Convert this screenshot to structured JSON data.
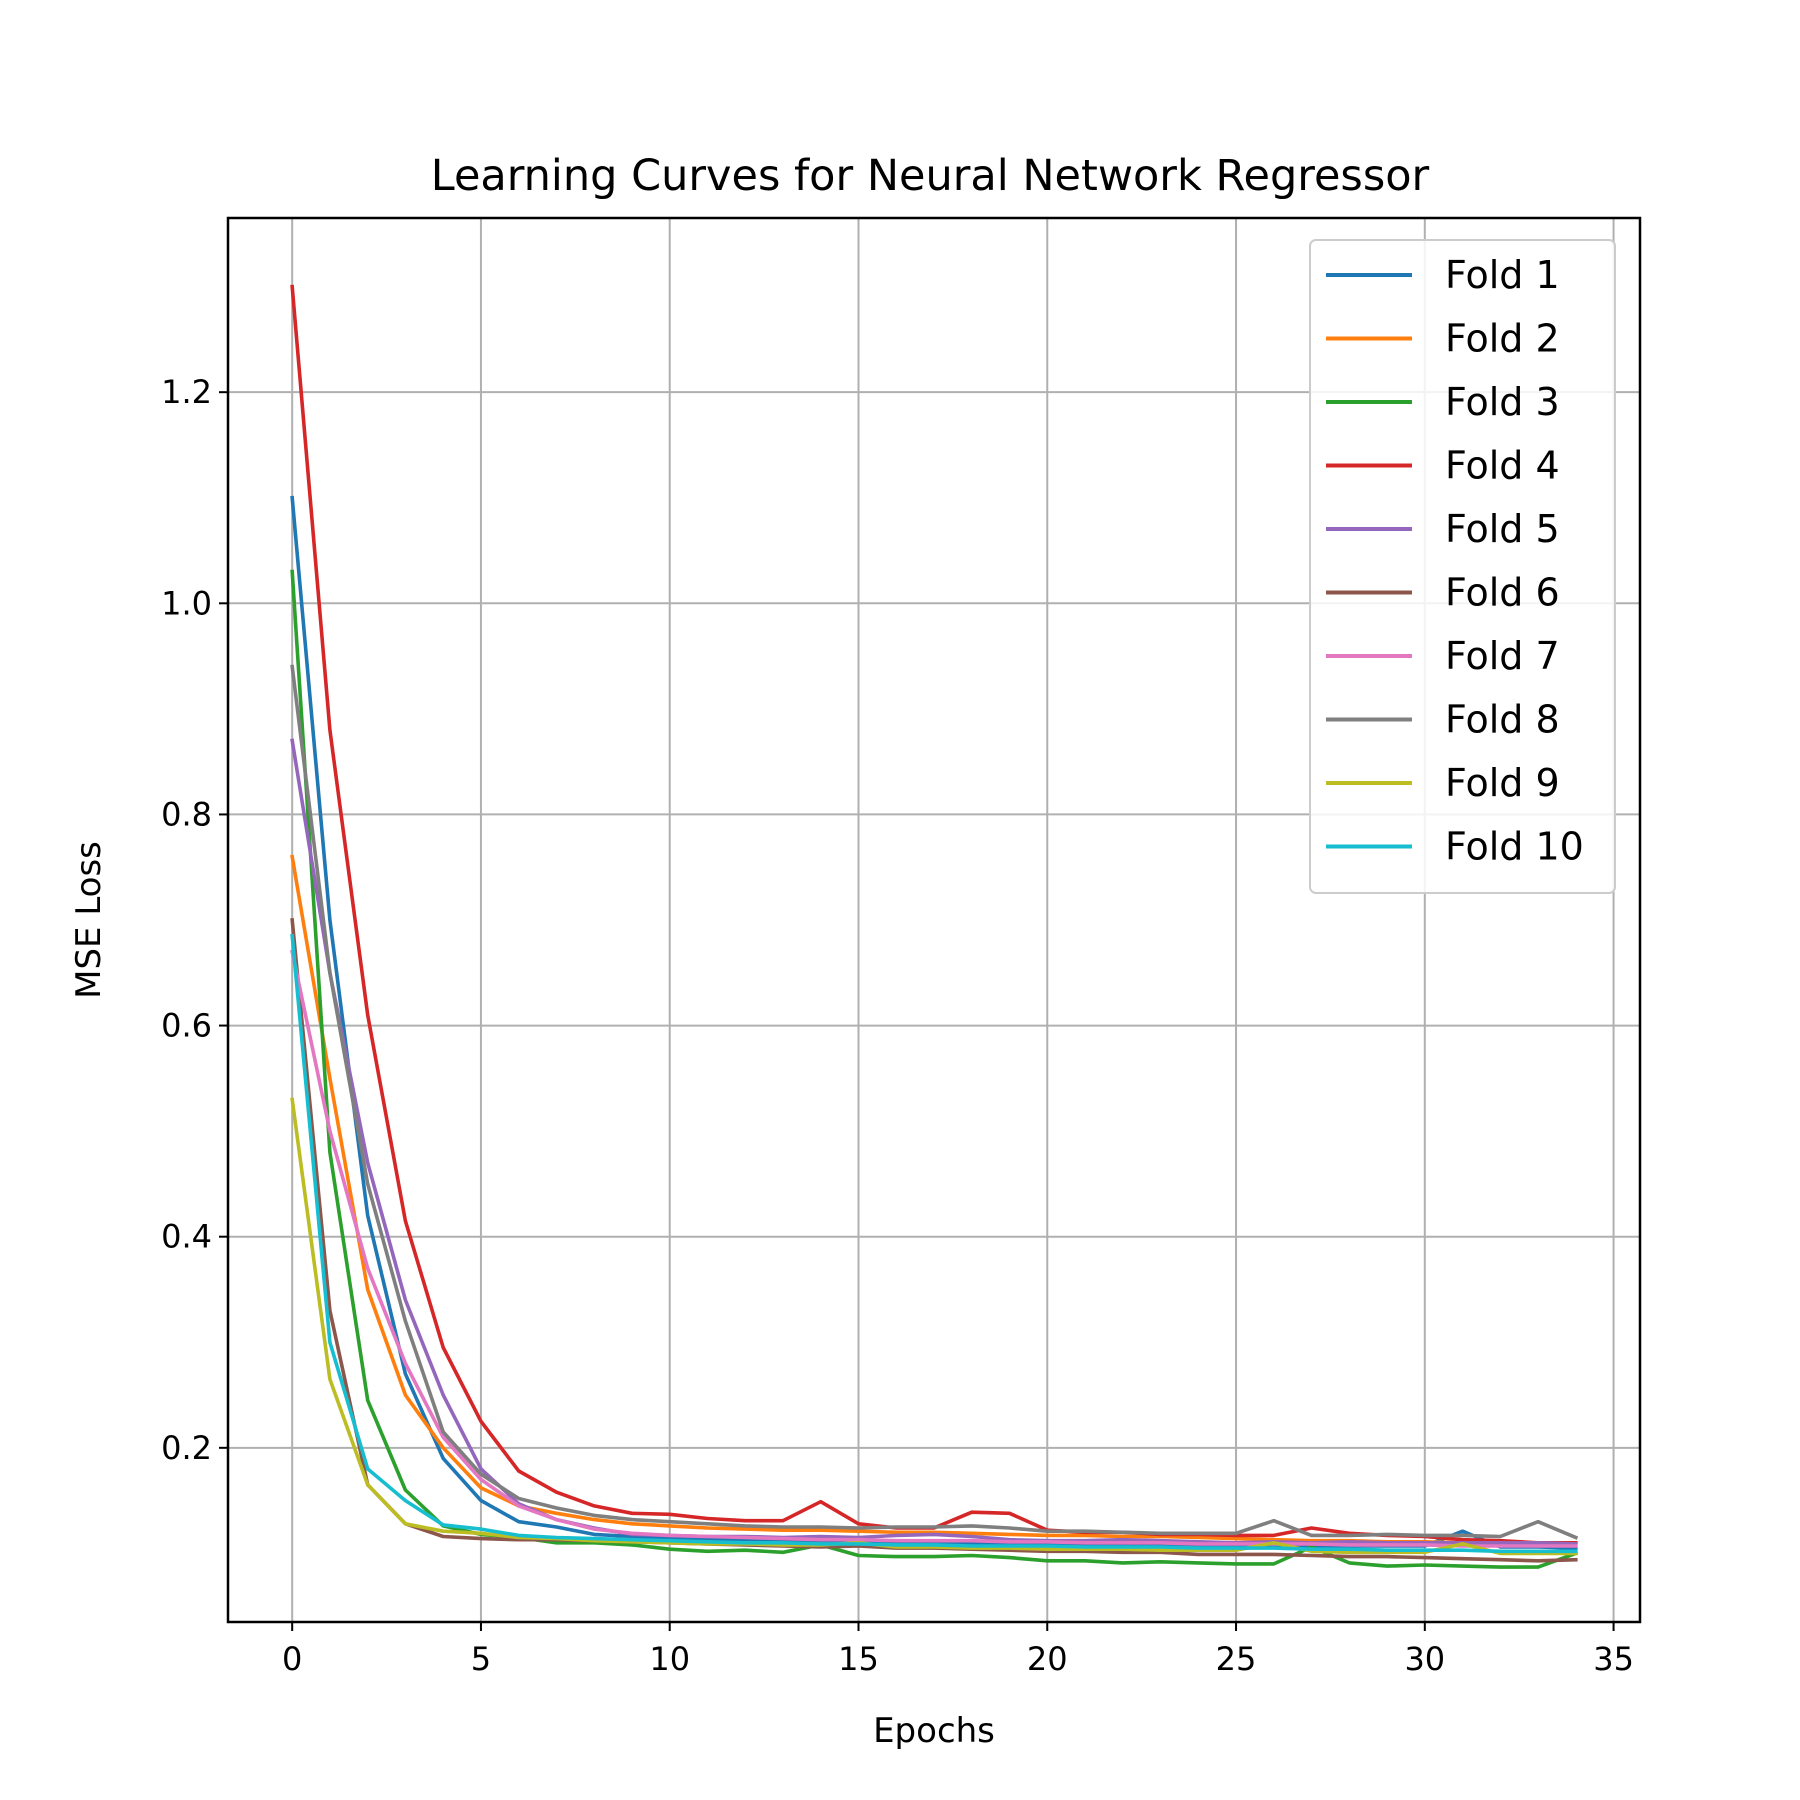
{
  "chart_data": {
    "type": "line",
    "title": "Learning Curves for Neural Network Regressor",
    "xlabel": "Epochs",
    "ylabel": "MSE Loss",
    "xlim": [
      -1.7,
      35.7
    ],
    "ylim": [
      0.035,
      1.365
    ],
    "xticks": [
      0,
      5,
      10,
      15,
      20,
      25,
      30,
      35
    ],
    "yticks": [
      0.2,
      0.4,
      0.6,
      0.8,
      1.0,
      1.2
    ],
    "ytick_labels": [
      "0.2",
      "0.4",
      "0.6",
      "0.8",
      "1.0",
      "1.2"
    ],
    "grid": true,
    "legend_position": "top-right",
    "x": [
      0,
      1,
      2,
      3,
      4,
      5,
      6,
      7,
      8,
      9,
      10,
      11,
      12,
      13,
      14,
      15,
      16,
      17,
      18,
      19,
      20,
      21,
      22,
      23,
      24,
      25,
      26,
      27,
      28,
      29,
      30,
      31,
      32,
      33,
      34
    ],
    "series": [
      {
        "name": "Fold 1",
        "color": "#1f77b4",
        "values": [
          1.1,
          0.7,
          0.42,
          0.27,
          0.19,
          0.15,
          0.13,
          0.125,
          0.118,
          0.116,
          0.115,
          0.114,
          0.113,
          0.112,
          0.112,
          0.112,
          0.111,
          0.111,
          0.11,
          0.11,
          0.11,
          0.109,
          0.109,
          0.109,
          0.108,
          0.108,
          0.108,
          0.107,
          0.107,
          0.107,
          0.107,
          0.121,
          0.106,
          0.106,
          0.105
        ]
      },
      {
        "name": "Fold 2",
        "color": "#ff7f0e",
        "values": [
          0.76,
          0.55,
          0.35,
          0.25,
          0.2,
          0.162,
          0.145,
          0.138,
          0.132,
          0.128,
          0.126,
          0.124,
          0.123,
          0.122,
          0.122,
          0.121,
          0.12,
          0.12,
          0.119,
          0.118,
          0.117,
          0.117,
          0.116,
          0.116,
          0.115,
          0.114,
          0.113,
          0.112,
          0.112,
          0.111,
          0.111,
          0.11,
          0.11,
          0.11,
          0.109
        ]
      },
      {
        "name": "Fold 3",
        "color": "#2ca02c",
        "values": [
          1.03,
          0.48,
          0.245,
          0.16,
          0.126,
          0.118,
          0.115,
          0.11,
          0.11,
          0.108,
          0.104,
          0.102,
          0.103,
          0.101,
          0.108,
          0.098,
          0.097,
          0.097,
          0.098,
          0.096,
          0.093,
          0.093,
          0.091,
          0.092,
          0.091,
          0.09,
          0.09,
          0.106,
          0.091,
          0.088,
          0.089,
          0.088,
          0.087,
          0.087,
          0.1
        ]
      },
      {
        "name": "Fold 4",
        "color": "#d62728",
        "values": [
          1.3,
          0.88,
          0.61,
          0.415,
          0.295,
          0.225,
          0.178,
          0.158,
          0.145,
          0.138,
          0.137,
          0.133,
          0.131,
          0.131,
          0.149,
          0.128,
          0.124,
          0.124,
          0.139,
          0.138,
          0.122,
          0.12,
          0.12,
          0.118,
          0.118,
          0.117,
          0.117,
          0.124,
          0.119,
          0.117,
          0.116,
          0.113,
          0.112,
          0.11,
          0.11
        ]
      },
      {
        "name": "Fold 5",
        "color": "#9467bd",
        "values": [
          0.87,
          0.65,
          0.47,
          0.34,
          0.25,
          0.18,
          0.147,
          0.132,
          0.124,
          0.118,
          0.117,
          0.116,
          0.116,
          0.115,
          0.116,
          0.115,
          0.117,
          0.118,
          0.116,
          0.113,
          0.112,
          0.112,
          0.113,
          0.112,
          0.111,
          0.11,
          0.111,
          0.11,
          0.111,
          0.11,
          0.11,
          0.11,
          0.11,
          0.11,
          0.109
        ]
      },
      {
        "name": "Fold 6",
        "color": "#8c564b",
        "values": [
          0.7,
          0.33,
          0.165,
          0.128,
          0.116,
          0.114,
          0.113,
          0.113,
          0.112,
          0.111,
          0.11,
          0.109,
          0.108,
          0.107,
          0.106,
          0.107,
          0.105,
          0.105,
          0.104,
          0.103,
          0.102,
          0.102,
          0.101,
          0.101,
          0.099,
          0.099,
          0.099,
          0.098,
          0.097,
          0.097,
          0.096,
          0.095,
          0.094,
          0.093,
          0.094
        ]
      },
      {
        "name": "Fold 7",
        "color": "#e377c2",
        "values": [
          0.67,
          0.5,
          0.37,
          0.28,
          0.21,
          0.17,
          0.145,
          0.132,
          0.123,
          0.119,
          0.117,
          0.116,
          0.115,
          0.114,
          0.113,
          0.113,
          0.112,
          0.112,
          0.112,
          0.111,
          0.111,
          0.11,
          0.11,
          0.11,
          0.109,
          0.109,
          0.109,
          0.109,
          0.108,
          0.108,
          0.108,
          0.107,
          0.107,
          0.107,
          0.107
        ]
      },
      {
        "name": "Fold 8",
        "color": "#7f7f7f",
        "values": [
          0.94,
          0.65,
          0.45,
          0.32,
          0.215,
          0.175,
          0.152,
          0.143,
          0.136,
          0.132,
          0.13,
          0.128,
          0.126,
          0.125,
          0.125,
          0.124,
          0.125,
          0.125,
          0.126,
          0.124,
          0.121,
          0.121,
          0.12,
          0.119,
          0.119,
          0.119,
          0.131,
          0.117,
          0.117,
          0.118,
          0.117,
          0.117,
          0.116,
          0.13,
          0.115
        ]
      },
      {
        "name": "Fold 9",
        "color": "#bcbd22",
        "values": [
          0.53,
          0.265,
          0.165,
          0.128,
          0.121,
          0.119,
          0.115,
          0.114,
          0.112,
          0.111,
          0.11,
          0.109,
          0.109,
          0.108,
          0.108,
          0.11,
          0.106,
          0.106,
          0.105,
          0.105,
          0.104,
          0.104,
          0.104,
          0.103,
          0.103,
          0.103,
          0.11,
          0.102,
          0.101,
          0.101,
          0.101,
          0.109,
          0.1,
          0.1,
          0.1
        ]
      },
      {
        "name": "Fold 10",
        "color": "#17becf",
        "values": [
          0.685,
          0.3,
          0.18,
          0.15,
          0.127,
          0.123,
          0.117,
          0.115,
          0.114,
          0.113,
          0.112,
          0.111,
          0.11,
          0.11,
          0.109,
          0.109,
          0.108,
          0.108,
          0.107,
          0.107,
          0.107,
          0.106,
          0.106,
          0.106,
          0.105,
          0.105,
          0.105,
          0.104,
          0.104,
          0.103,
          0.103,
          0.103,
          0.102,
          0.102,
          0.102
        ]
      }
    ]
  }
}
